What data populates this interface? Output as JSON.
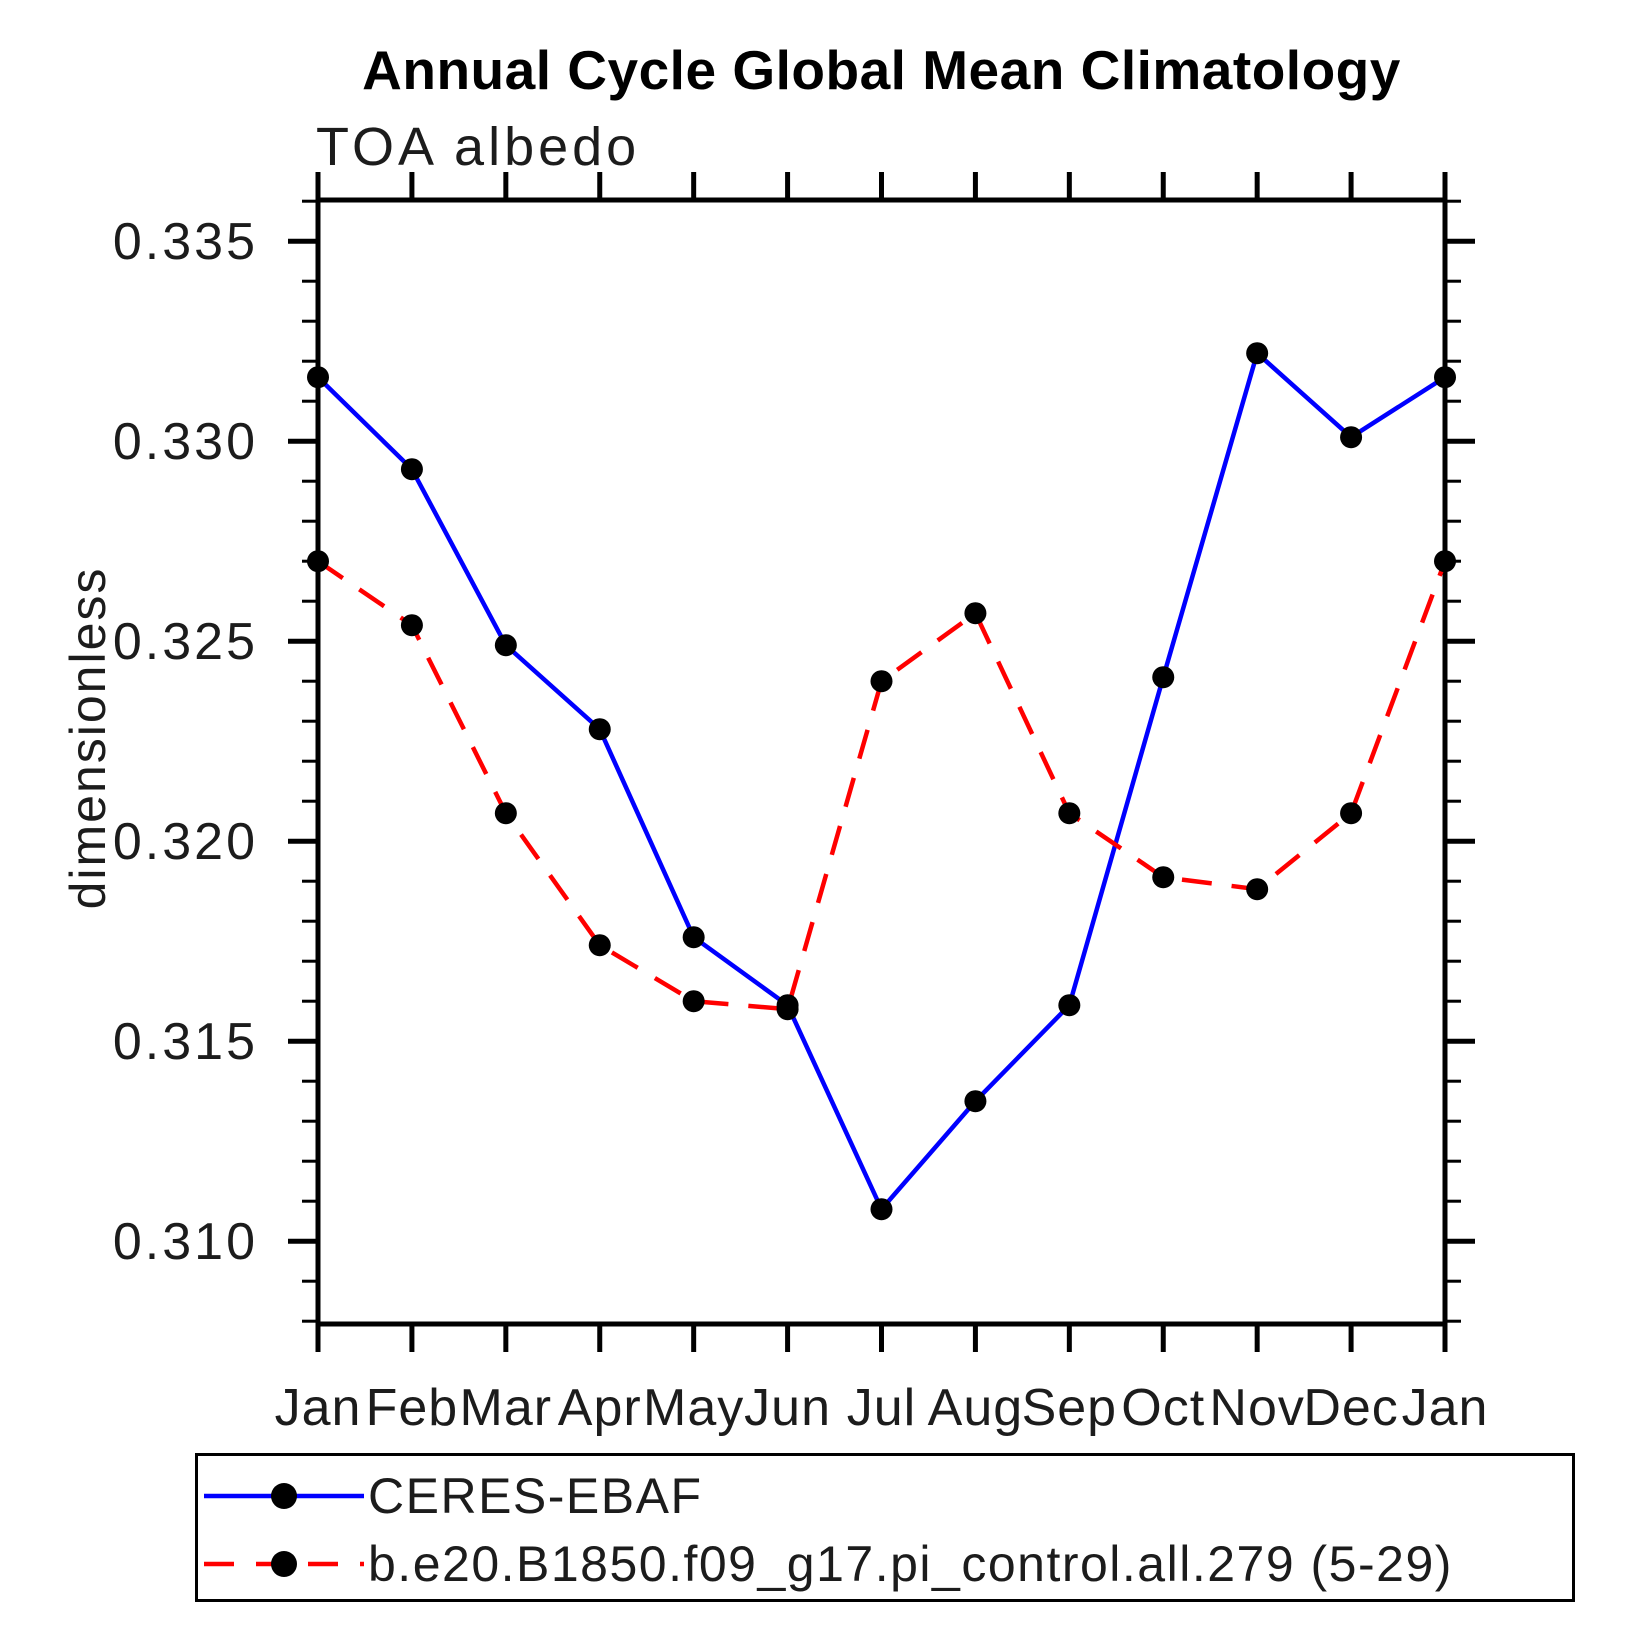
{
  "title": "Annual Cycle Global Mean Climatology",
  "plot_header": "TOA albedo",
  "ylabel": "dimensionless",
  "colors": {
    "obs_line": "#0000ff",
    "model_line": "#ff0000",
    "marker": "#000000",
    "axis": "#000000",
    "background": "#ffffff"
  },
  "chart_data": {
    "type": "line",
    "categories": [
      "Jan",
      "Feb",
      "Mar",
      "Apr",
      "May",
      "Jun",
      "Jul",
      "Aug",
      "Sep",
      "Oct",
      "Nov",
      "Dec",
      "Jan"
    ],
    "series": [
      {
        "name": "CERES-EBAF",
        "style": "solid",
        "color": "#0000ff",
        "marker": "filled-circle",
        "values": [
          0.3316,
          0.3293,
          0.3249,
          0.3228,
          0.3176,
          0.3159,
          0.3108,
          0.3135,
          0.3159,
          0.3241,
          0.3322,
          0.3301,
          0.3316
        ]
      },
      {
        "name": "b.e20.B1850.f09_g17.pi_control.all.279 (5-29)",
        "style": "dashed",
        "color": "#ff0000",
        "marker": "filled-circle",
        "values": [
          0.327,
          0.3254,
          0.3207,
          0.3174,
          0.316,
          0.3158,
          0.324,
          0.3257,
          0.3207,
          0.3191,
          0.3188,
          0.3207,
          0.327
        ]
      }
    ],
    "xlabel": "",
    "ylabel": "dimensionless",
    "ylim": [
      0.30793,
      0.33603
    ],
    "yticks": [
      0.31,
      0.315,
      0.32,
      0.325,
      0.33,
      0.335
    ],
    "ytick_labels": [
      "0.310",
      "0.315",
      "0.320",
      "0.325",
      "0.330",
      "0.335"
    ],
    "y_minor_step": 0.001,
    "grid": false,
    "legend_position": "bottom-left"
  }
}
